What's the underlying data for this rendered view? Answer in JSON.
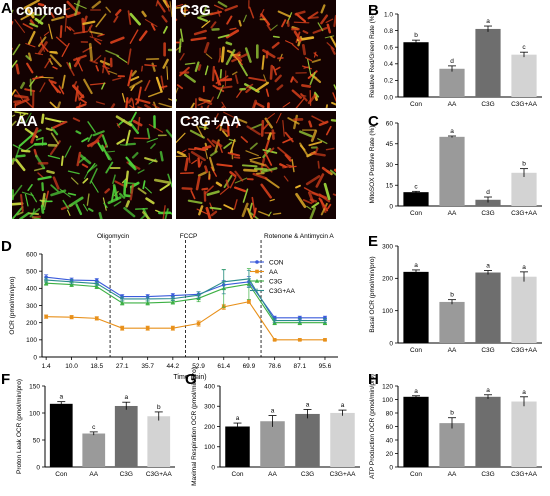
{
  "panel_letters": [
    "A",
    "B",
    "C",
    "D",
    "E",
    "F",
    "G",
    "H"
  ],
  "micrographs": [
    {
      "label": "control",
      "tone": "red"
    },
    {
      "label": "C3G",
      "tone": "red"
    },
    {
      "label": "AA",
      "tone": "green"
    },
    {
      "label": "C3G+AA",
      "tone": "red"
    }
  ],
  "colors": {
    "con": "#000000",
    "aa": "#9a9a9a",
    "c3g": "#6e6e6e",
    "c3g_aa": "#d3d3d3",
    "line_con": "#3b5bdb",
    "line_aa": "#e8901a",
    "line_c3g": "#3cb043",
    "line_c3g_aa": "#2a8c8c"
  },
  "chart_data": [
    {
      "id": "B",
      "type": "bar",
      "categories": [
        "Con",
        "AA",
        "C3G",
        "C3G+AA"
      ],
      "values": [
        0.66,
        0.34,
        0.82,
        0.51
      ],
      "errors": [
        0.025,
        0.035,
        0.035,
        0.03
      ],
      "sig_letters": [
        "b",
        "d",
        "a",
        "c"
      ],
      "ylabel": "Relative Red/Green Rate (%)",
      "ylim": [
        0,
        1.0
      ],
      "yticks": [
        0.0,
        0.2,
        0.4,
        0.6,
        0.8,
        1.0
      ],
      "ytick_labels": [
        "0.0",
        "0.2",
        "0.4",
        "0.6",
        "0.8",
        "1.0"
      ]
    },
    {
      "id": "C",
      "type": "bar",
      "categories": [
        "Con",
        "AA",
        "C3G",
        "C3G+AA"
      ],
      "values": [
        10,
        50,
        4.5,
        24
      ],
      "errors": [
        0.6,
        0.6,
        2,
        3
      ],
      "sig_letters": [
        "c",
        "a",
        "d",
        "b"
      ],
      "ylabel": "MitoSOX Positive Rate (%)",
      "ylim": [
        0,
        60
      ],
      "yticks": [
        0,
        15,
        30,
        45,
        60
      ],
      "ytick_labels": [
        "0",
        "15",
        "30",
        "45",
        "60"
      ]
    },
    {
      "id": "D",
      "type": "line",
      "x": [
        1.4,
        10.0,
        18.5,
        27.1,
        35.7,
        44.2,
        52.9,
        61.4,
        69.9,
        78.6,
        87.1,
        95.6
      ],
      "xtick_labels": [
        "1.4",
        "10.0",
        "18.5",
        "27.1",
        "35.7",
        "44.2",
        "52.9",
        "61.4",
        "69.9",
        "78.6",
        "87.1",
        "95.6"
      ],
      "xlabel": "Time (min)",
      "ylabel": "OCR (pmol/min/pro)",
      "ylim": [
        0,
        600
      ],
      "yticks": [
        0,
        100,
        200,
        300,
        400,
        500,
        600
      ],
      "ytick_labels": [
        "0",
        "100",
        "200",
        "300",
        "400",
        "500",
        "600"
      ],
      "annotations": [
        {
          "text": "Oligomycin",
          "x": 23
        },
        {
          "text": "FCCP",
          "x": 48.5
        },
        {
          "text": "Rotenone & Antimycin A",
          "x": 74
        }
      ],
      "series": [
        {
          "name": "CON",
          "color": "#3b5bdb",
          "marker": "circle",
          "values": [
            465,
            448,
            445,
            352,
            352,
            358,
            365,
            420,
            438,
            228,
            228,
            228
          ],
          "errors": [
            14,
            12,
            12,
            12,
            12,
            12,
            15,
            25,
            30,
            10,
            10,
            10
          ]
        },
        {
          "name": "AA",
          "color": "#e8901a",
          "marker": "square",
          "values": [
            235,
            232,
            225,
            168,
            168,
            168,
            195,
            292,
            322,
            100,
            100,
            100
          ],
          "errors": [
            10,
            10,
            10,
            12,
            12,
            12,
            15,
            15,
            10,
            5,
            5,
            5
          ]
        },
        {
          "name": "C3G",
          "color": "#3cb043",
          "marker": "triangle",
          "values": [
            430,
            422,
            410,
            315,
            315,
            320,
            342,
            400,
            425,
            200,
            200,
            200
          ],
          "errors": [
            12,
            12,
            12,
            12,
            12,
            12,
            20,
            110,
            90,
            12,
            12,
            12
          ]
        },
        {
          "name": "C3G+AA",
          "color": "#2a8c8c",
          "marker": "plus",
          "values": [
            448,
            438,
            428,
            338,
            338,
            340,
            360,
            438,
            455,
            212,
            212,
            212
          ],
          "errors": [
            12,
            12,
            12,
            12,
            12,
            12,
            20,
            70,
            50,
            12,
            12,
            12
          ]
        }
      ],
      "legend": "top-right"
    },
    {
      "id": "E",
      "type": "bar",
      "categories": [
        "Con",
        "AA",
        "C3G",
        "C3G+AA"
      ],
      "values": [
        220,
        127,
        218,
        205
      ],
      "errors": [
        6,
        7,
        6,
        15
      ],
      "sig_letters": [
        "a",
        "b",
        "a",
        "a"
      ],
      "ylabel": "Basal OCR (pmol/min/pro)",
      "ylim": [
        0,
        300
      ],
      "yticks": [
        0,
        100,
        200,
        300
      ],
      "ytick_labels": [
        "0",
        "100",
        "200",
        "300"
      ]
    },
    {
      "id": "F",
      "type": "bar",
      "categories": [
        "Con",
        "AA",
        "C3G",
        "C3G+AA"
      ],
      "values": [
        117,
        62,
        113,
        94
      ],
      "errors": [
        4,
        3,
        7,
        8
      ],
      "sig_letters": [
        "a",
        "c",
        "a",
        "b"
      ],
      "ylabel": "Proton Leak OCR (pmol/min/pro)",
      "ylim": [
        0,
        150
      ],
      "yticks": [
        0,
        50,
        100,
        150
      ],
      "ytick_labels": [
        "0",
        "50",
        "100",
        "150"
      ]
    },
    {
      "id": "G",
      "type": "bar",
      "categories": [
        "Con",
        "AA",
        "C3G",
        "C3G+AA"
      ],
      "values": [
        200,
        226,
        262,
        267
      ],
      "errors": [
        17,
        28,
        22,
        14
      ],
      "sig_letters": [
        "a",
        "a",
        "a",
        "a"
      ],
      "ylabel": "Maximal Respiration OCR (pmol/min/pro)",
      "ylim": [
        0,
        400
      ],
      "yticks": [
        0,
        100,
        200,
        300,
        400
      ],
      "ytick_labels": [
        "0",
        "100",
        "200",
        "300",
        "400"
      ]
    },
    {
      "id": "H",
      "type": "bar",
      "categories": [
        "Con",
        "AA",
        "C3G",
        "C3G+AA"
      ],
      "values": [
        104,
        65,
        104,
        97
      ],
      "errors": [
        1.5,
        8,
        3,
        7
      ],
      "sig_letters": [
        "a",
        "b",
        "a",
        "a"
      ],
      "ylabel": "ATP Production OCR (pmol/min/pro)",
      "ylim": [
        0,
        120
      ],
      "yticks": [
        0,
        20,
        40,
        60,
        80,
        100,
        120
      ],
      "ytick_labels": [
        "0",
        "20",
        "40",
        "60",
        "80",
        "100",
        "120"
      ]
    }
  ]
}
